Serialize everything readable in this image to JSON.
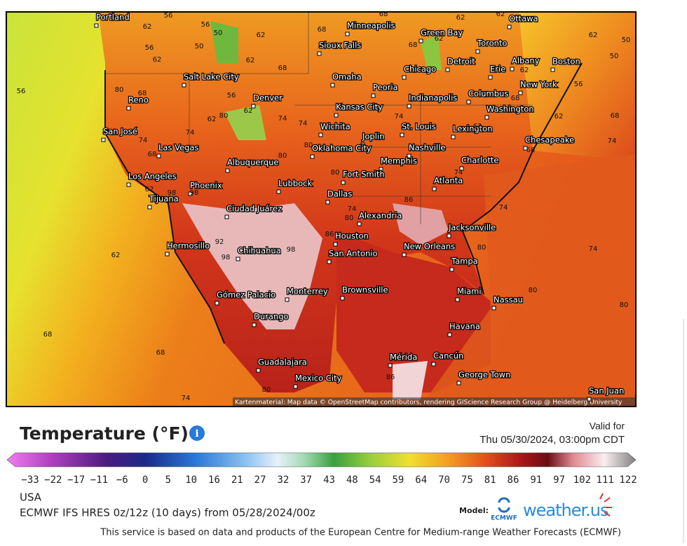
{
  "header": {
    "title": "Temperature (°F)",
    "info_icon": "i",
    "valid_label": "Valid for",
    "valid_time": "Thu 05/30/2024, 03:00pm CDT"
  },
  "map": {
    "attribution": "Kartenmaterial: Map data © OpenStreetMap contributors, rendering GIScience Research Group @ Heidelberg University",
    "cities": [
      "Portland",
      "Minneapolis",
      "Ottawa",
      "Green Bay",
      "Sioux Falls",
      "Toronto",
      "Detroit",
      "Albany",
      "Boston",
      "Chicago",
      "Erie",
      "Salt Lake City",
      "Omaha",
      "Peoria",
      "New York",
      "Reno",
      "Denver",
      "Indianapolis",
      "Columbus",
      "Kansas City",
      "Washington",
      "San José",
      "Wichita",
      "Joplin",
      "St. Louis",
      "Lexington",
      "Chesapeake",
      "Las Vegas",
      "Oklahoma City",
      "Nashville",
      "Albuquerque",
      "Memphis",
      "Charlotte",
      "Los Angeles",
      "Fort Smith",
      "Phoenix",
      "Lubbock",
      "Atlanta",
      "Tijuana",
      "Dallas",
      "Ciudad Juárez",
      "Alexandria",
      "Jacksonville",
      "Hermosillo",
      "Chihuahua",
      "Houston",
      "New Orleans",
      "San Antonio",
      "Tampa",
      "Monterrey",
      "Brownsville",
      "Gómez Palacio",
      "Miami",
      "Nassau",
      "Durango",
      "Havana",
      "Mérida",
      "Cancún",
      "George Town",
      "Guadalajara",
      "Mexico City",
      "San Juan"
    ],
    "temperatures": [
      56,
      56,
      62,
      50,
      62,
      68,
      68,
      62,
      62,
      62,
      68,
      56,
      50,
      62,
      62,
      68,
      62,
      50,
      50,
      56,
      80,
      68,
      62,
      56,
      68,
      56,
      62,
      62,
      80,
      74,
      74,
      74,
      62,
      62,
      68,
      74,
      74,
      74,
      68,
      80,
      80,
      68,
      80,
      74,
      62,
      98,
      98,
      74,
      80,
      86,
      74,
      86,
      92,
      98,
      98,
      80,
      74,
      62,
      80,
      80,
      68,
      68,
      74,
      80,
      86
    ]
  },
  "scale": {
    "labels": [
      "−33",
      "−22",
      "−17",
      "−11",
      "−6",
      "0",
      "5",
      "10",
      "16",
      "21",
      "27",
      "32",
      "37",
      "43",
      "48",
      "54",
      "59",
      "64",
      "70",
      "75",
      "81",
      "86",
      "91",
      "97",
      "102",
      "111",
      "122"
    ]
  },
  "footer": {
    "region": "USA",
    "model_run": "ECMWF IFS HRES 0z/12z (10 days) from 05/28/2024/00z",
    "model_label": "Model:",
    "ecmwf": "ECMWF",
    "brand": "weather.us",
    "disclaimer": "This service is based on data and products of the European Centre for Medium-range Weather Forecasts (ECMWF)"
  }
}
